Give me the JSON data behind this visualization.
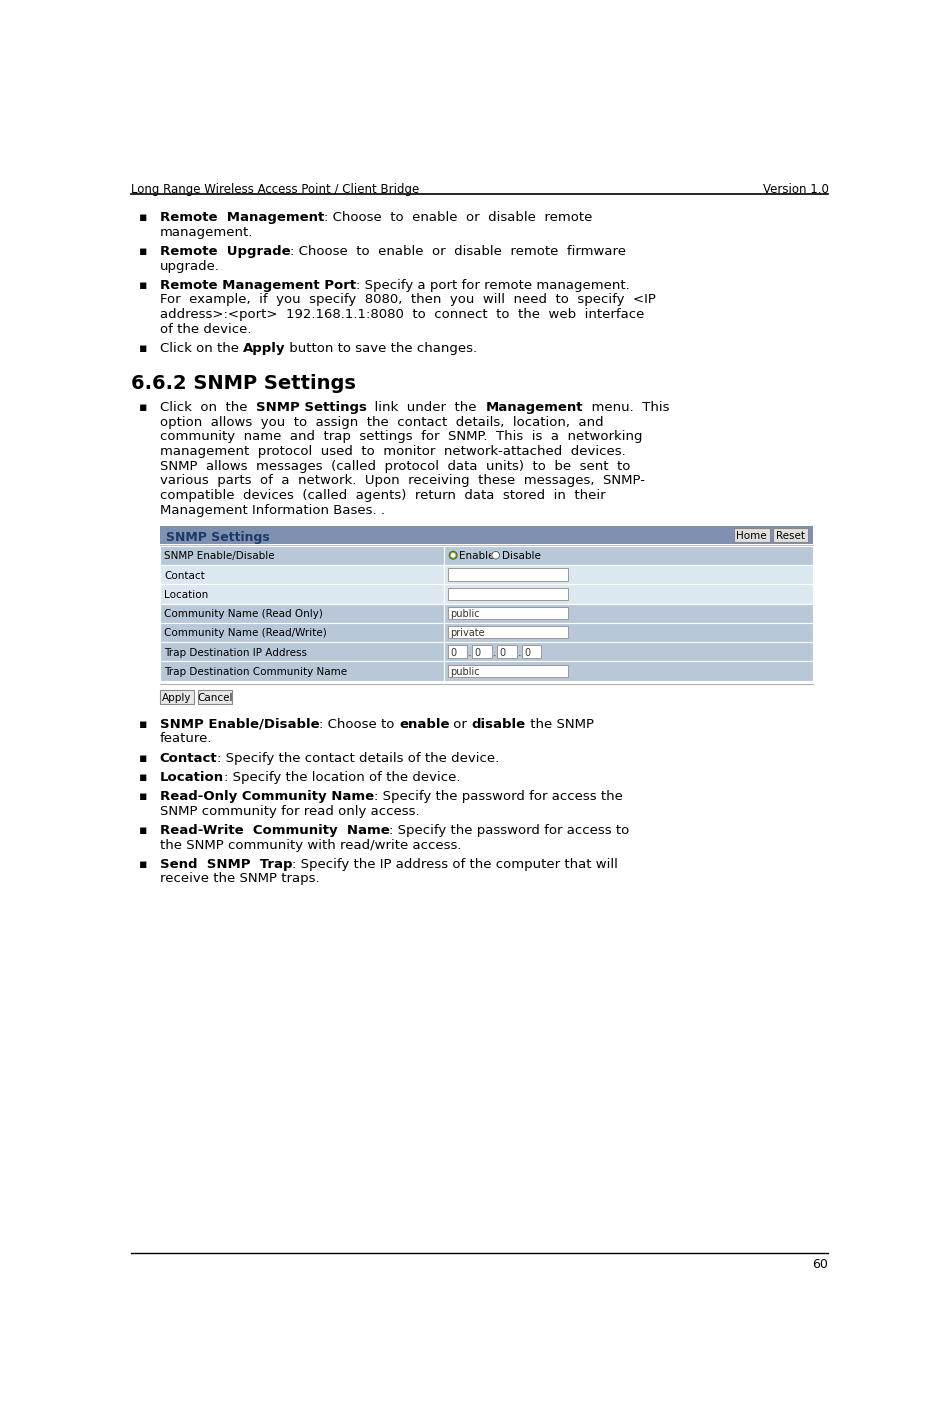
{
  "header_left": "Long Range Wireless Access Point / Client Bridge",
  "header_right": "Version 1.0",
  "page_number": "60",
  "section_heading": "6.6.2 SNMP Settings",
  "bg_color": "#ffffff",
  "snmp_title_color": "#1a3a6b",
  "table_row_shaded": "#b8c8d8",
  "table_row_light": "#dce8f0",
  "table_header_bg": "#8090b0"
}
